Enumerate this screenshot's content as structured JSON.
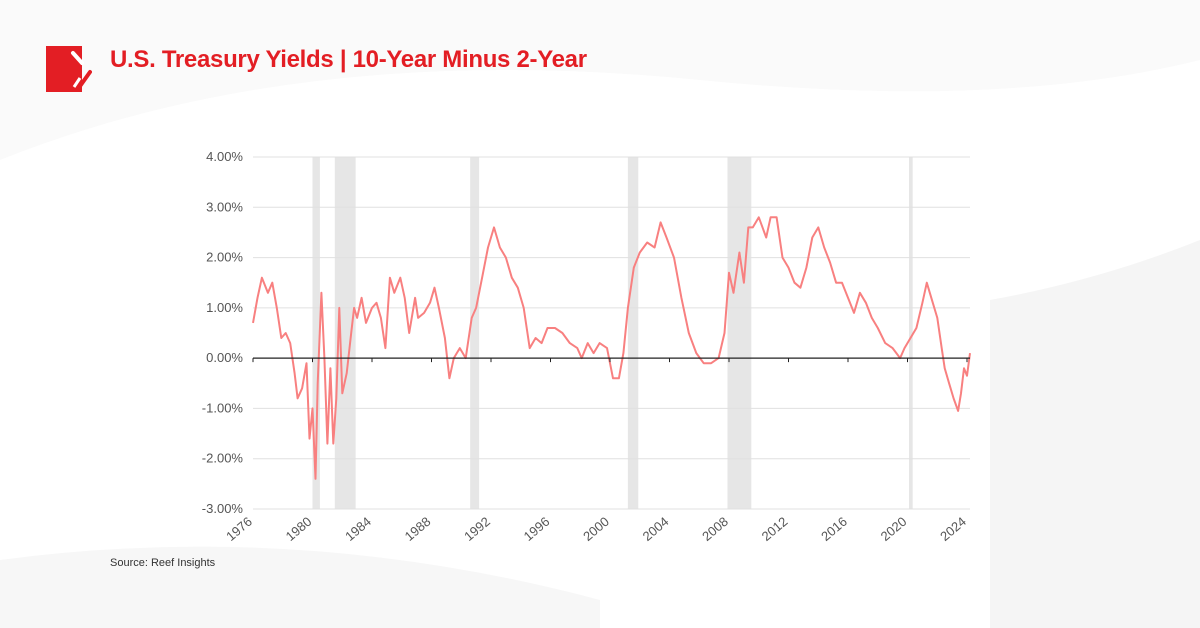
{
  "header": {
    "title": "U.S. Treasury Yields | 10-Year Minus 2-Year",
    "logo": "reef-insights-logo"
  },
  "footer": {
    "source": "Source: Reef Insights"
  },
  "colors": {
    "accent": "#e31e24",
    "line": "#f88080",
    "recession": "#e6e6e6",
    "grid": "#e0e0e0"
  },
  "chart_data": {
    "type": "line",
    "title": "",
    "xlabel": "",
    "ylabel": "",
    "xlim": [
      1976,
      2024.2
    ],
    "ylim": [
      -3,
      4
    ],
    "grid": true,
    "x_ticks": [
      "1976",
      "1980",
      "1984",
      "1988",
      "1992",
      "1996",
      "2000",
      "2004",
      "2008",
      "2012",
      "2016",
      "2020",
      "2024"
    ],
    "y_ticks": [
      "4.00%",
      "3.00%",
      "2.00%",
      "1.00%",
      "0.00%",
      "-1.00%",
      "-2.00%",
      "-3.00%"
    ],
    "recessions": [
      [
        1980.0,
        1980.5
      ],
      [
        1981.5,
        1982.9
      ],
      [
        1990.6,
        1991.2
      ],
      [
        2001.2,
        2001.9
      ],
      [
        2007.9,
        2009.5
      ],
      [
        2020.1,
        2020.35
      ]
    ],
    "series": [
      {
        "x": [
          1976.0,
          1976.3,
          1976.6,
          1977.0,
          1977.3,
          1977.6,
          1977.9,
          1978.2,
          1978.5,
          1978.8,
          1979.0,
          1979.3,
          1979.6,
          1979.8,
          1980.0,
          1980.2,
          1980.35,
          1980.6,
          1980.8,
          1981.0,
          1981.2,
          1981.4,
          1981.6,
          1981.8,
          1982.0,
          1982.3,
          1982.6,
          1982.8,
          1983.0,
          1983.3,
          1983.6,
          1984.0,
          1984.3,
          1984.6,
          1984.9,
          1985.2,
          1985.5,
          1985.9,
          1986.2,
          1986.5,
          1986.9,
          1987.1,
          1987.5,
          1987.9,
          1988.2,
          1988.5,
          1988.9,
          1989.2,
          1989.5,
          1989.9,
          1990.3,
          1990.7,
          1991.0,
          1991.4,
          1991.8,
          1992.2,
          1992.6,
          1993.0,
          1993.4,
          1993.8,
          1994.2,
          1994.6,
          1995.0,
          1995.4,
          1995.8,
          1996.3,
          1996.8,
          1997.3,
          1997.8,
          1998.1,
          1998.5,
          1998.9,
          1999.3,
          1999.8,
          2000.2,
          2000.6,
          2000.9,
          2001.2,
          2001.6,
          2002.0,
          2002.5,
          2003.0,
          2003.4,
          2003.8,
          2004.3,
          2004.8,
          2005.3,
          2005.8,
          2006.3,
          2006.8,
          2007.3,
          2007.7,
          2008.0,
          2008.3,
          2008.7,
          2009.0,
          2009.3,
          2009.6,
          2010.0,
          2010.5,
          2010.8,
          2011.2,
          2011.6,
          2012.0,
          2012.4,
          2012.8,
          2013.2,
          2013.6,
          2014.0,
          2014.4,
          2014.8,
          2015.2,
          2015.6,
          2016.0,
          2016.4,
          2016.8,
          2017.2,
          2017.6,
          2018.0,
          2018.5,
          2019.0,
          2019.5,
          2019.8,
          2020.2,
          2020.6,
          2021.0,
          2021.3,
          2021.6,
          2022.0,
          2022.3,
          2022.5,
          2022.8,
          2023.1,
          2023.4,
          2023.6,
          2023.8,
          2024.0,
          2024.2
        ],
        "values": [
          0.7,
          1.2,
          1.6,
          1.3,
          1.5,
          1.0,
          0.4,
          0.5,
          0.3,
          -0.3,
          -0.8,
          -0.6,
          -0.1,
          -1.6,
          -1.0,
          -2.4,
          -0.5,
          1.3,
          0.0,
          -1.7,
          -0.2,
          -1.7,
          -0.8,
          1.0,
          -0.7,
          -0.3,
          0.5,
          1.0,
          0.8,
          1.2,
          0.7,
          1.0,
          1.1,
          0.8,
          0.2,
          1.6,
          1.3,
          1.6,
          1.2,
          0.5,
          1.2,
          0.8,
          0.9,
          1.1,
          1.4,
          1.0,
          0.4,
          -0.4,
          0.0,
          0.2,
          0.0,
          0.8,
          1.0,
          1.6,
          2.2,
          2.6,
          2.2,
          2.0,
          1.6,
          1.4,
          1.0,
          0.2,
          0.4,
          0.3,
          0.6,
          0.6,
          0.5,
          0.3,
          0.2,
          0.0,
          0.3,
          0.1,
          0.3,
          0.2,
          -0.4,
          -0.4,
          0.1,
          1.0,
          1.8,
          2.1,
          2.3,
          2.2,
          2.7,
          2.4,
          2.0,
          1.2,
          0.5,
          0.1,
          -0.1,
          -0.1,
          0.0,
          0.5,
          1.7,
          1.3,
          2.1,
          1.5,
          2.6,
          2.6,
          2.8,
          2.4,
          2.8,
          2.8,
          2.0,
          1.8,
          1.5,
          1.4,
          1.8,
          2.4,
          2.6,
          2.2,
          1.9,
          1.5,
          1.5,
          1.2,
          0.9,
          1.3,
          1.1,
          0.8,
          0.6,
          0.3,
          0.2,
          0.0,
          0.2,
          0.4,
          0.6,
          1.1,
          1.5,
          1.2,
          0.8,
          0.2,
          -0.2,
          -0.5,
          -0.8,
          -1.05,
          -0.7,
          -0.2,
          -0.35,
          0.1
        ]
      }
    ]
  }
}
